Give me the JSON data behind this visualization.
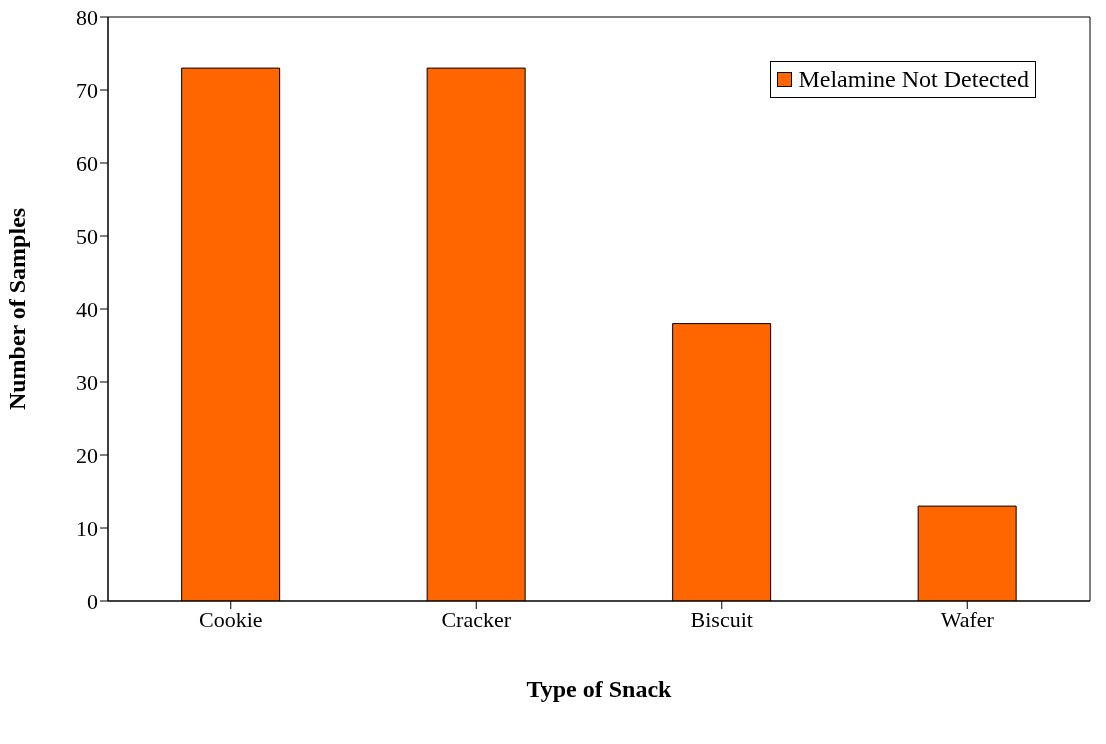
{
  "chart_data": {
    "type": "bar",
    "xlabel": "Type of Snack",
    "ylabel": "Number of Samples",
    "categories": [
      "Cookie",
      "Cracker",
      "Biscuit",
      "Wafer"
    ],
    "series": [
      {
        "name": "Melamine Not Detected",
        "color": "#ff6600",
        "values": [
          73,
          73,
          38,
          13
        ]
      }
    ],
    "ylim": [
      0,
      80
    ],
    "yticks": [
      0,
      10,
      20,
      30,
      40,
      50,
      60,
      70,
      80
    ],
    "grid": false,
    "legend": "top right"
  }
}
